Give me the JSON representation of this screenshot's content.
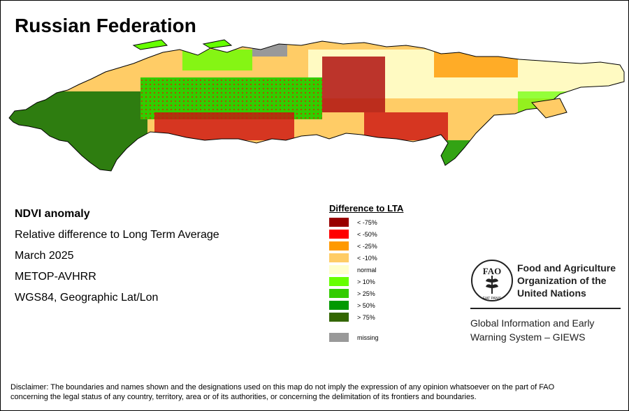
{
  "title": "Russian Federation",
  "info": {
    "line1": "NDVI anomaly",
    "line2": "Relative difference to Long Term Average",
    "line3": "March 2025",
    "line4": "METOP-AVHRR",
    "line5": "WGS84, Geographic Lat/Lon"
  },
  "legend": {
    "title": "Difference to LTA",
    "items": [
      {
        "label": "< -75%",
        "color": "#990000"
      },
      {
        "label": "< -50%",
        "color": "#ff0000"
      },
      {
        "label": "< -25%",
        "color": "#ff9900"
      },
      {
        "label": "< -10%",
        "color": "#ffcc66"
      },
      {
        "label": "normal",
        "color": "#ffffcc"
      },
      {
        "label": "> 10%",
        "color": "#66ff00"
      },
      {
        "label": "> 25%",
        "color": "#33cc00"
      },
      {
        "label": "> 50%",
        "color": "#009900"
      },
      {
        "label": "> 75%",
        "color": "#336600"
      }
    ],
    "missing": {
      "label": "missing",
      "color": "#999999"
    }
  },
  "fao": {
    "name_line1": "Food and Agriculture",
    "name_line2": "Organization of the",
    "name_line3": "United Nations",
    "logo_letters": "FAO",
    "motto": "FIAT PANIS",
    "giews_line1": "Global Information and Early",
    "giews_line2": "Warning System – GIEWS"
  },
  "disclaimer": {
    "line1": "Disclaimer: The boundaries and names shown and the designations used on this map do not imply the expression of any opinion whatsoever on the part of FAO",
    "line2": "concerning the legal status of any country, territory, area or of its authorities, or concerning the delimitation of its frontiers and boundaries."
  }
}
